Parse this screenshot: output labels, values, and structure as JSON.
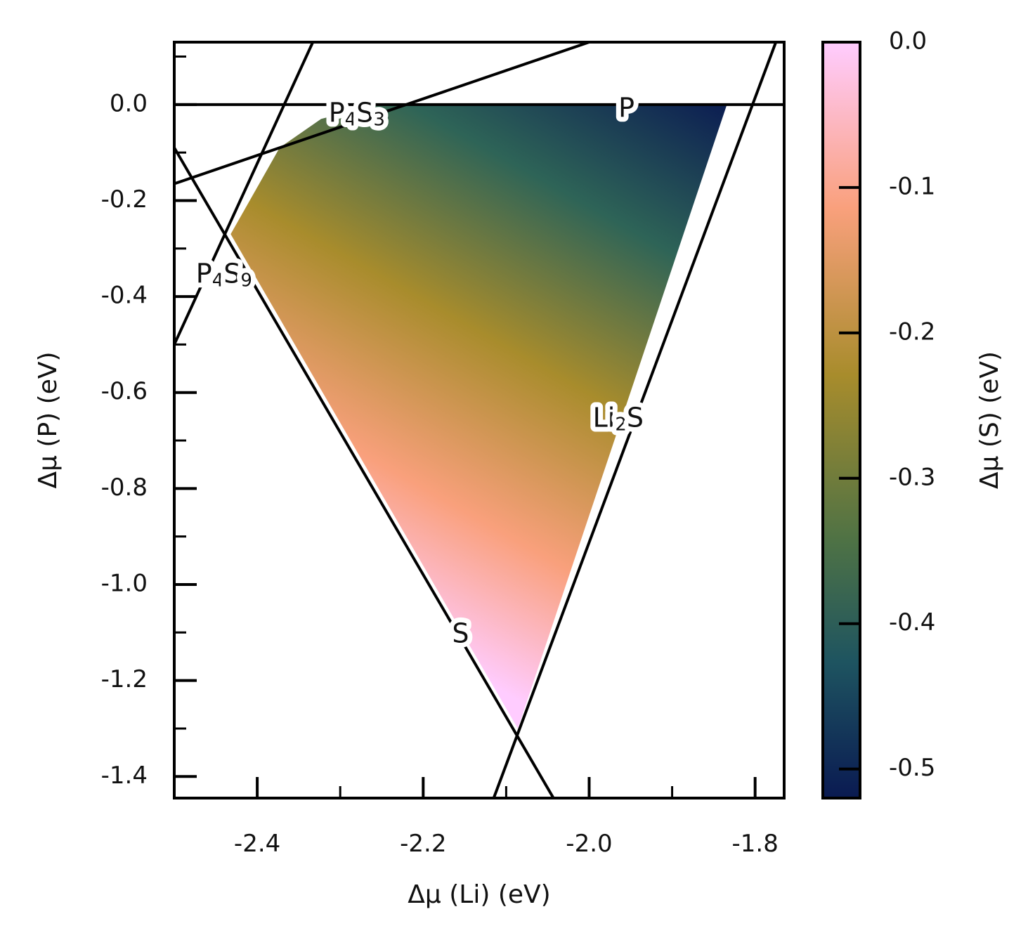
{
  "chart_data": {
    "type": "area",
    "xlabel": "Δμ (Li) (eV)",
    "ylabel": "Δμ (P) (eV)",
    "colorbar_label": "Δμ (S) (eV)",
    "xlim": [
      -2.5,
      -1.765
    ],
    "ylim": [
      -1.445,
      0.13
    ],
    "x_ticks": [
      -2.4,
      -2.2,
      -2.0,
      -1.8
    ],
    "x_tick_labels": [
      "-2.4",
      "-2.2",
      "-2.0",
      "-1.8"
    ],
    "y_ticks": [
      0.0,
      -0.2,
      -0.4,
      -0.6,
      -0.8,
      -1.0,
      -1.2,
      -1.4
    ],
    "y_tick_labels": [
      "0.0",
      "-0.2",
      "-0.4",
      "-0.6",
      "-0.8",
      "-1.0",
      "-1.2",
      "-1.4"
    ],
    "colorbar_range": [
      -0.52,
      0.0
    ],
    "colorbar_ticks": [
      0.0,
      -0.1,
      -0.2,
      -0.3,
      -0.4,
      -0.5
    ],
    "colorbar_tick_labels": [
      "0.0",
      "-0.1",
      "-0.2",
      "-0.3",
      "-0.4",
      "-0.5"
    ],
    "colormap": [
      "#ffccff",
      "#f9a07c",
      "#a88c2c",
      "#2e6457",
      "#0a1a52"
    ],
    "stable_region": [
      {
        "x": -2.432,
        "y": -0.27
      },
      {
        "x": -2.373,
        "y": -0.09
      },
      {
        "x": -2.323,
        "y": -0.03
      },
      {
        "x": -2.255,
        "y": 0.0
      },
      {
        "x": -1.834,
        "y": 0.0
      },
      {
        "x": -2.086,
        "y": -1.3
      }
    ],
    "boundary_lines": [
      {
        "name": "P",
        "points": [
          {
            "x": -2.5,
            "y": 0.0
          },
          {
            "x": -1.765,
            "y": 0.0
          }
        ]
      },
      {
        "name": "P4S3",
        "points": [
          {
            "x": -2.5,
            "y": -0.165
          },
          {
            "x": -2.0,
            "y": 0.13
          }
        ]
      },
      {
        "name": "P4S9",
        "points": [
          {
            "x": -2.5,
            "y": -0.5
          },
          {
            "x": -2.333,
            "y": 0.13
          }
        ]
      },
      {
        "name": "S",
        "points": [
          {
            "x": -2.5,
            "y": -0.09
          },
          {
            "x": -2.043,
            "y": -1.445
          }
        ]
      },
      {
        "name": "Li2S",
        "points": [
          {
            "x": -2.115,
            "y": -1.445
          },
          {
            "x": -1.775,
            "y": 0.13
          }
        ]
      }
    ],
    "region_labels": [
      {
        "text": "P",
        "sub": "",
        "tail": "",
        "x": -1.955,
        "y": -0.01
      },
      {
        "text": "P",
        "sub": "4",
        "tail": "S",
        "sub2": "3",
        "x": -2.28,
        "y": -0.02
      },
      {
        "text": "P",
        "sub": "4",
        "tail": "S",
        "sub2": "9",
        "x": -2.44,
        "y": -0.355
      },
      {
        "text": "Li",
        "sub": "2",
        "tail": "S",
        "sub2": "",
        "x": -1.965,
        "y": -0.655
      },
      {
        "text": "S",
        "sub": "",
        "tail": "",
        "sub2": "",
        "x": -2.155,
        "y": -1.105
      }
    ]
  }
}
